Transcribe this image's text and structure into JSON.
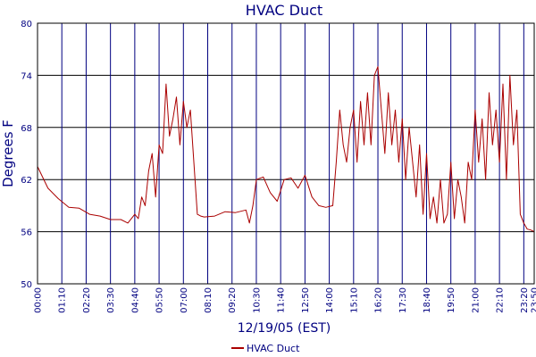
{
  "chart_data": {
    "type": "line",
    "title": "HVAC Duct",
    "xlabel": "12/19/05 (EST)",
    "ylabel": "Degrees F",
    "ylim": [
      50,
      80
    ],
    "yticks": [
      50,
      56,
      62,
      68,
      74,
      80
    ],
    "xticks": [
      "00:00",
      "01:10",
      "02:20",
      "03:30",
      "04:40",
      "05:50",
      "07:00",
      "08:10",
      "09:20",
      "10:30",
      "11:40",
      "12:50",
      "14:00",
      "15:10",
      "16:20",
      "17:30",
      "18:40",
      "19:50",
      "21:00",
      "22:10",
      "23:20",
      "23:50"
    ],
    "grid": true,
    "legend_position": "bottom",
    "series": [
      {
        "name": "HVAC Duct",
        "color": "#aa0000",
        "x": [
          "00:00",
          "00:30",
          "01:00",
          "01:30",
          "02:00",
          "02:30",
          "03:00",
          "03:30",
          "04:00",
          "04:20",
          "04:40",
          "04:50",
          "05:00",
          "05:10",
          "05:20",
          "05:30",
          "05:40",
          "05:50",
          "06:00",
          "06:10",
          "06:20",
          "06:30",
          "06:40",
          "06:50",
          "07:00",
          "07:10",
          "07:20",
          "07:30",
          "07:40",
          "07:50",
          "08:00",
          "08:30",
          "09:00",
          "09:30",
          "10:00",
          "10:10",
          "10:20",
          "10:30",
          "10:50",
          "11:10",
          "11:30",
          "11:50",
          "12:10",
          "12:30",
          "12:50",
          "13:10",
          "13:30",
          "13:50",
          "14:10",
          "14:20",
          "14:30",
          "14:40",
          "14:50",
          "15:00",
          "15:10",
          "15:20",
          "15:30",
          "15:40",
          "15:50",
          "16:00",
          "16:10",
          "16:20",
          "16:30",
          "16:40",
          "16:50",
          "17:00",
          "17:10",
          "17:20",
          "17:30",
          "17:40",
          "17:50",
          "18:00",
          "18:10",
          "18:20",
          "18:30",
          "18:40",
          "18:50",
          "19:00",
          "19:10",
          "19:20",
          "19:30",
          "19:40",
          "19:50",
          "20:00",
          "20:10",
          "20:20",
          "20:30",
          "20:40",
          "20:50",
          "21:00",
          "21:10",
          "21:20",
          "21:30",
          "21:40",
          "21:50",
          "22:00",
          "22:10",
          "22:20",
          "22:30",
          "22:40",
          "22:50",
          "23:00",
          "23:10",
          "23:20",
          "23:30",
          "23:40",
          "23:50"
        ],
        "values": [
          63.5,
          61.0,
          59.8,
          58.8,
          58.7,
          58.0,
          57.8,
          57.4,
          57.4,
          57.0,
          58.0,
          57.5,
          60.0,
          59.0,
          63.0,
          65.0,
          60.0,
          66.0,
          65.0,
          73.0,
          67.0,
          69.0,
          71.5,
          66.0,
          71.0,
          68.0,
          70.0,
          64.0,
          58.0,
          57.8,
          57.7,
          57.8,
          58.3,
          58.2,
          58.5,
          57.0,
          59.0,
          62.0,
          62.3,
          60.5,
          59.5,
          62.0,
          62.2,
          61.0,
          62.5,
          60.0,
          59.0,
          58.8,
          59.0,
          64.0,
          70.0,
          66.0,
          64.0,
          68.0,
          70.0,
          64.0,
          71.0,
          66.0,
          72.0,
          66.0,
          74.0,
          75.0,
          70.0,
          65.0,
          72.0,
          66.0,
          70.0,
          64.0,
          69.0,
          62.0,
          68.0,
          64.0,
          60.0,
          66.0,
          58.0,
          65.0,
          57.5,
          60.0,
          57.0,
          62.0,
          57.0,
          58.0,
          64.0,
          57.5,
          62.0,
          60.0,
          57.0,
          64.0,
          62.0,
          70.0,
          64.0,
          69.0,
          62.0,
          72.0,
          66.0,
          70.0,
          64.0,
          73.0,
          62.0,
          74.0,
          66.0,
          70.0,
          58.0,
          57.0,
          56.3,
          56.2,
          56.0
        ]
      }
    ]
  }
}
